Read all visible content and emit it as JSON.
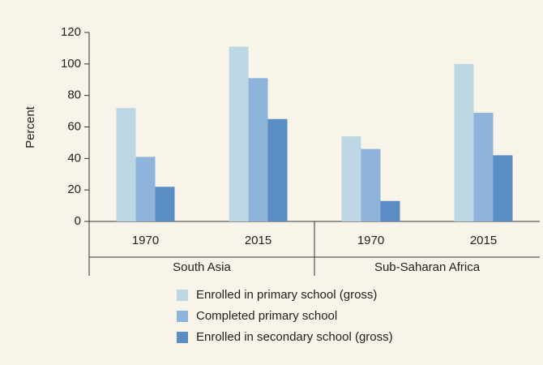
{
  "chart_data": {
    "type": "bar",
    "y_label": "Percent",
    "groups": [
      {
        "name": "South Asia",
        "categories": [
          "1970",
          "2015"
        ]
      },
      {
        "name": "Sub-Saharan Africa",
        "categories": [
          "1970",
          "2015"
        ]
      }
    ],
    "series": [
      {
        "name": "Enrolled in primary school (gross)",
        "color": "#bdd6e4",
        "values": [
          72,
          111,
          54,
          100
        ]
      },
      {
        "name": "Completed primary school",
        "color": "#8fb4dc",
        "values": [
          41,
          91,
          46,
          69
        ]
      },
      {
        "name": "Enrolled in secondary school (gross)",
        "color": "#5a8dc4",
        "values": [
          22,
          65,
          13,
          42
        ]
      }
    ],
    "ylim": [
      0,
      120
    ],
    "yticks": [
      0,
      20,
      40,
      60,
      80,
      100,
      120
    ],
    "grid": false,
    "legend": "bottom"
  }
}
